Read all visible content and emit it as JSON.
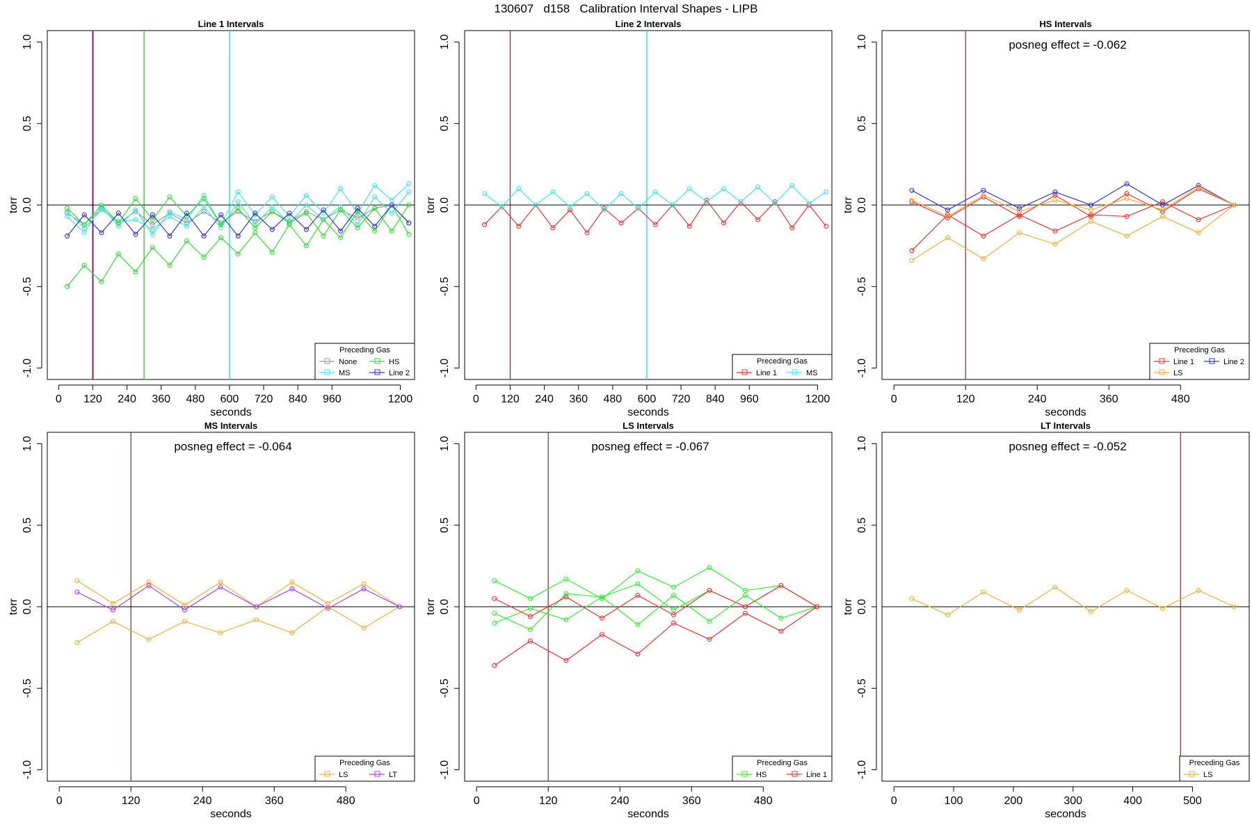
{
  "figure_title": "130607   d158   Calibration Interval Shapes - LIPB",
  "legend_title": "Preceding Gas",
  "chart_data": [
    {
      "type": "line",
      "title": "Line 1 Intervals",
      "xlabel": "seconds",
      "ylabel": "torr",
      "xlim": [
        -40,
        1250
      ],
      "ylim": [
        -1.07,
        1.07
      ],
      "xticks": [
        0,
        120,
        240,
        360,
        480,
        600,
        720,
        840,
        960,
        1200
      ],
      "yticks": [
        -1.0,
        -0.5,
        0.0,
        0.5,
        1.0
      ],
      "vlines": [
        {
          "x": 120,
          "color": "#8b1a6b",
          "width": 2
        },
        {
          "x": 300,
          "color": "#33dd33",
          "width": 1.5
        },
        {
          "x": 600,
          "color": "#33e6e6",
          "width": 1.5
        }
      ],
      "hline": 0,
      "annotation": "",
      "legend": {
        "position": "bottom-right",
        "columns": 2,
        "items": [
          "None",
          "HS",
          "MS",
          "Line 2"
        ]
      },
      "series": [
        {
          "name": "None",
          "color": "#999999",
          "marker": "circle",
          "x": [
            30,
            90,
            150,
            210,
            270,
            330,
            390,
            450,
            510,
            570,
            630,
            690,
            750,
            810,
            870,
            930,
            990,
            1050,
            1110,
            1170,
            1230
          ],
          "y": [
            -0.05,
            -0.12,
            -0.02,
            -0.11,
            -0.04,
            -0.12,
            -0.05,
            -0.11,
            -0.04,
            -0.11,
            -0.04,
            -0.1,
            -0.04,
            -0.1,
            -0.04,
            -0.09,
            -0.03,
            -0.08,
            -0.02,
            0.0,
            -0.11
          ]
        },
        {
          "name": "MS",
          "color": "#44e6e6",
          "marker": "circle",
          "x": [
            30,
            90,
            150,
            210,
            270,
            330,
            390,
            450,
            510,
            570,
            630,
            690,
            750,
            810,
            870,
            930,
            990,
            1050,
            1110,
            1170,
            1230
          ],
          "y": [
            -0.07,
            -0.17,
            -0.01,
            -0.13,
            -0.03,
            -0.18,
            -0.04,
            -0.09,
            0.06,
            -0.12,
            0.08,
            -0.06,
            0.05,
            -0.07,
            0.06,
            -0.05,
            0.1,
            -0.05,
            0.12,
            0.03,
            0.13
          ]
        },
        {
          "name": "MS",
          "color": "#44e6e6",
          "marker": "circle",
          "x": [
            30,
            90,
            150,
            210,
            270,
            330,
            390,
            450,
            510,
            570,
            630,
            690,
            750,
            810,
            870,
            930,
            990,
            1050,
            1110,
            1170,
            1230
          ],
          "y": [
            -0.04,
            -0.14,
            -0.03,
            -0.1,
            -0.09,
            -0.15,
            -0.07,
            -0.13,
            -0.01,
            -0.14,
            0.02,
            -0.12,
            -0.01,
            -0.11,
            0.0,
            -0.09,
            -0.01,
            -0.12,
            0.05,
            -0.05,
            0.08
          ]
        },
        {
          "name": "HS",
          "color": "#33dd33",
          "marker": "circle",
          "x": [
            30,
            90,
            150,
            210,
            270,
            330,
            390,
            450,
            510,
            570,
            630,
            690,
            750,
            810,
            870,
            930,
            990,
            1050,
            1110,
            1170,
            1230
          ],
          "y": [
            -0.02,
            -0.12,
            0.0,
            -0.11,
            0.04,
            -0.09,
            0.05,
            -0.07,
            0.04,
            -0.12,
            -0.02,
            -0.14,
            -0.04,
            -0.11,
            -0.05,
            -0.19,
            -0.03,
            -0.14,
            -0.02,
            -0.16,
            0.0
          ]
        },
        {
          "name": "HS",
          "color": "#33dd33",
          "marker": "circle",
          "x": [
            30,
            90,
            150,
            210,
            270,
            330,
            390,
            450,
            510,
            570,
            630,
            690,
            750,
            810,
            870,
            930,
            990,
            1050,
            1110,
            1170,
            1230
          ],
          "y": [
            -0.5,
            -0.37,
            -0.47,
            -0.3,
            -0.41,
            -0.26,
            -0.37,
            -0.22,
            -0.32,
            -0.2,
            -0.3,
            -0.17,
            -0.29,
            -0.12,
            -0.25,
            -0.09,
            -0.2,
            -0.04,
            -0.16,
            0.0,
            -0.18
          ]
        },
        {
          "name": "Line 2",
          "color": "#3333cc",
          "marker": "circle",
          "x": [
            30,
            90,
            150,
            210,
            270,
            330,
            390,
            450,
            510,
            570,
            630,
            690,
            750,
            810,
            870,
            930,
            990,
            1050,
            1110,
            1170,
            1230
          ],
          "y": [
            -0.19,
            -0.06,
            -0.17,
            -0.05,
            -0.18,
            -0.06,
            -0.19,
            -0.05,
            -0.19,
            -0.06,
            -0.19,
            -0.05,
            -0.15,
            -0.05,
            -0.15,
            -0.03,
            -0.16,
            -0.02,
            -0.13,
            0.0,
            -0.11
          ]
        }
      ]
    },
    {
      "type": "line",
      "title": "Line 2 Intervals",
      "xlabel": "seconds",
      "ylabel": "torr",
      "xlim": [
        -40,
        1250
      ],
      "ylim": [
        -1.07,
        1.07
      ],
      "xticks": [
        0,
        120,
        240,
        360,
        480,
        600,
        720,
        840,
        960,
        1200
      ],
      "yticks": [
        -1.0,
        -0.5,
        0.0,
        0.5,
        1.0
      ],
      "vlines": [
        {
          "x": 120,
          "color": "#a0201f",
          "width": 1.2
        },
        {
          "x": 600,
          "color": "#33e6e6",
          "width": 1.5
        }
      ],
      "hline": 0,
      "annotation": "",
      "legend": {
        "position": "bottom-right",
        "columns": 2,
        "items": [
          "Line 1",
          "MS"
        ]
      },
      "series": [
        {
          "name": "Line 1",
          "color": "#ee3333",
          "marker": "circle",
          "x": [
            30,
            90,
            150,
            210,
            270,
            330,
            390,
            450,
            510,
            570,
            630,
            690,
            750,
            810,
            870,
            930,
            990,
            1050,
            1110,
            1170,
            1230
          ],
          "y": [
            -0.12,
            -0.01,
            -0.13,
            0.0,
            -0.14,
            -0.03,
            -0.17,
            -0.02,
            -0.11,
            -0.02,
            -0.12,
            0.0,
            -0.13,
            0.03,
            -0.11,
            0.02,
            -0.09,
            0.02,
            -0.14,
            0.0,
            -0.13
          ]
        },
        {
          "name": "MS",
          "color": "#44e6e6",
          "marker": "circle",
          "x": [
            30,
            90,
            150,
            210,
            270,
            330,
            390,
            450,
            510,
            570,
            630,
            690,
            750,
            810,
            870,
            930,
            990,
            1050,
            1110,
            1170,
            1230
          ],
          "y": [
            0.07,
            -0.01,
            0.1,
            0.0,
            0.08,
            -0.01,
            0.07,
            -0.03,
            0.07,
            -0.02,
            0.08,
            0.0,
            0.1,
            0.02,
            0.1,
            0.02,
            0.11,
            0.01,
            0.12,
            0.01,
            0.08
          ]
        }
      ]
    },
    {
      "type": "line",
      "title": "HS Intervals",
      "xlabel": "seconds",
      "ylabel": "torr",
      "xlim": [
        -20,
        595
      ],
      "ylim": [
        -1.07,
        1.07
      ],
      "xticks": [
        0,
        120,
        240,
        360,
        480
      ],
      "yticks": [
        -1.0,
        -0.5,
        0.0,
        0.5,
        1.0
      ],
      "vlines": [
        {
          "x": 120,
          "color": "#a0201f",
          "width": 1.2
        }
      ],
      "hline": 0,
      "annotation": "posneg effect = -0.062",
      "legend": {
        "position": "bottom-right",
        "columns": 2,
        "items": [
          "Line 1",
          "Line 2",
          "LS"
        ]
      },
      "series": [
        {
          "name": "Line 1",
          "color": "#ee3333",
          "marker": "circle",
          "x": [
            30,
            90,
            150,
            210,
            270,
            330,
            390,
            450,
            510,
            570
          ],
          "y": [
            -0.28,
            -0.06,
            -0.19,
            -0.06,
            -0.16,
            -0.06,
            -0.07,
            0.02,
            -0.09,
            0.0
          ]
        },
        {
          "name": "Line 1",
          "color": "#ee3333",
          "marker": "circle",
          "x": [
            30,
            90,
            150,
            210,
            270,
            330,
            390,
            450,
            510,
            570
          ],
          "y": [
            0.02,
            -0.08,
            0.05,
            -0.07,
            0.06,
            -0.07,
            0.07,
            -0.04,
            0.1,
            0.0
          ]
        },
        {
          "name": "Line 2",
          "color": "#3333cc",
          "marker": "circle",
          "x": [
            30,
            90,
            150,
            210,
            270,
            330,
            390,
            450,
            510,
            570
          ],
          "y": [
            0.09,
            -0.03,
            0.09,
            -0.02,
            0.08,
            0.0,
            0.13,
            0.0,
            0.12,
            0.0
          ]
        },
        {
          "name": "LS",
          "color": "#f0b040",
          "marker": "circle",
          "x": [
            30,
            90,
            150,
            210,
            270,
            330,
            390,
            450,
            510,
            570
          ],
          "y": [
            -0.34,
            -0.2,
            -0.33,
            -0.17,
            -0.24,
            -0.1,
            -0.19,
            -0.07,
            -0.17,
            0.0
          ]
        },
        {
          "name": "LS",
          "color": "#f0b040",
          "marker": "circle",
          "x": [
            30,
            90,
            150,
            210,
            270,
            330,
            390,
            450,
            510,
            570
          ],
          "y": [
            0.03,
            -0.07,
            0.06,
            -0.04,
            0.03,
            -0.03,
            0.04,
            -0.03,
            0.11,
            0.0
          ]
        }
      ]
    },
    {
      "type": "line",
      "title": "MS Intervals",
      "xlabel": "seconds",
      "ylabel": "torr",
      "xlim": [
        -20,
        595
      ],
      "ylim": [
        -1.07,
        1.07
      ],
      "xticks": [
        0,
        120,
        240,
        360,
        480
      ],
      "yticks": [
        -1.0,
        -0.5,
        0.0,
        0.5,
        1.0
      ],
      "vlines": [
        {
          "x": 120,
          "color": "#a0201f",
          "width": 1.2
        }
      ],
      "hline": 0,
      "annotation": "posneg effect = -0.064",
      "legend": {
        "position": "bottom-right",
        "columns": 2,
        "items": [
          "LS",
          "LT"
        ]
      },
      "series": [
        {
          "name": "LS",
          "color": "#f0b040",
          "marker": "circle",
          "x": [
            30,
            90,
            150,
            210,
            270,
            330,
            390,
            450,
            510,
            570
          ],
          "y": [
            0.16,
            0.02,
            0.15,
            0.01,
            0.15,
            0.0,
            0.15,
            0.02,
            0.14,
            0.0
          ]
        },
        {
          "name": "LS",
          "color": "#f0b040",
          "marker": "circle",
          "x": [
            30,
            90,
            150,
            210,
            270,
            330,
            390,
            450,
            510,
            570
          ],
          "y": [
            -0.22,
            -0.09,
            -0.2,
            -0.09,
            -0.16,
            -0.08,
            -0.16,
            0.0,
            -0.13,
            0.0
          ]
        },
        {
          "name": "LT",
          "color": "#aa44ee",
          "marker": "circle",
          "x": [
            30,
            90,
            150,
            210,
            270,
            330,
            390,
            450,
            510,
            570
          ],
          "y": [
            0.09,
            -0.02,
            0.13,
            -0.02,
            0.12,
            0.0,
            0.11,
            -0.01,
            0.11,
            0.0
          ]
        }
      ]
    },
    {
      "type": "line",
      "title": "LS Intervals",
      "xlabel": "seconds",
      "ylabel": "torr",
      "xlim": [
        -20,
        595
      ],
      "ylim": [
        -1.07,
        1.07
      ],
      "xticks": [
        0,
        120,
        240,
        360,
        480
      ],
      "yticks": [
        -1.0,
        -0.5,
        0.0,
        0.5,
        1.0
      ],
      "vlines": [
        {
          "x": 120,
          "color": "#a0201f",
          "width": 1.2
        }
      ],
      "hline": 0,
      "annotation": "posneg effect = -0.067",
      "legend": {
        "position": "bottom-right",
        "columns": 2,
        "items": [
          "HS",
          "Line 1"
        ]
      },
      "series": [
        {
          "name": "HS",
          "color": "#33ee33",
          "marker": "circle",
          "x": [
            30,
            90,
            150,
            210,
            270,
            330,
            390,
            450,
            510,
            570
          ],
          "y": [
            0.16,
            0.05,
            0.17,
            0.05,
            0.22,
            0.12,
            0.24,
            0.1,
            0.13,
            0.0
          ]
        },
        {
          "name": "HS",
          "color": "#33ee33",
          "marker": "circle",
          "x": [
            30,
            90,
            150,
            210,
            270,
            330,
            390,
            450,
            510,
            570
          ],
          "y": [
            -0.1,
            -0.01,
            -0.08,
            0.06,
            -0.11,
            0.07,
            -0.09,
            0.07,
            -0.07,
            0.0
          ]
        },
        {
          "name": "HS",
          "color": "#33ee33",
          "marker": "circle",
          "x": [
            30,
            90,
            150,
            210,
            270,
            330,
            390,
            450,
            510,
            570
          ],
          "y": [
            -0.04,
            -0.14,
            0.08,
            0.06,
            0.14,
            -0.02,
            0.1,
            0.0,
            0.13,
            0.0
          ]
        },
        {
          "name": "Line 1",
          "color": "#ee3333",
          "marker": "circle",
          "x": [
            30,
            90,
            150,
            210,
            270,
            330,
            390,
            450,
            510,
            570
          ],
          "y": [
            0.05,
            -0.06,
            0.06,
            -0.07,
            0.07,
            -0.05,
            0.1,
            0.0,
            0.13,
            0.0
          ]
        },
        {
          "name": "Line 1",
          "color": "#ee3333",
          "marker": "circle",
          "x": [
            30,
            90,
            150,
            210,
            270,
            330,
            390,
            450,
            510,
            570
          ],
          "y": [
            -0.36,
            -0.21,
            -0.33,
            -0.17,
            -0.29,
            -0.1,
            -0.2,
            -0.04,
            -0.15,
            0.0
          ]
        }
      ]
    },
    {
      "type": "line",
      "title": "LT Intervals",
      "xlabel": "seconds",
      "ylabel": "torr",
      "xlim": [
        -20,
        595
      ],
      "ylim": [
        -1.07,
        1.07
      ],
      "xticks": [
        0,
        100,
        200,
        300,
        400,
        500
      ],
      "yticks": [
        -1.0,
        -0.5,
        0.0,
        0.5,
        1.0
      ],
      "vlines": [
        {
          "x": 480,
          "color": "#a0201f",
          "width": 1.2
        }
      ],
      "hline": 0,
      "annotation": "posneg effect = -0.052",
      "legend": {
        "position": "bottom-right",
        "columns": 1,
        "items": [
          "LS"
        ]
      },
      "series": [
        {
          "name": "LS",
          "color": "#f0b040",
          "marker": "circle",
          "x": [
            30,
            90,
            150,
            210,
            270,
            330,
            390,
            450,
            510,
            570
          ],
          "y": [
            0.05,
            -0.05,
            0.09,
            -0.02,
            0.12,
            -0.03,
            0.1,
            -0.01,
            0.1,
            0.0
          ]
        }
      ]
    }
  ]
}
